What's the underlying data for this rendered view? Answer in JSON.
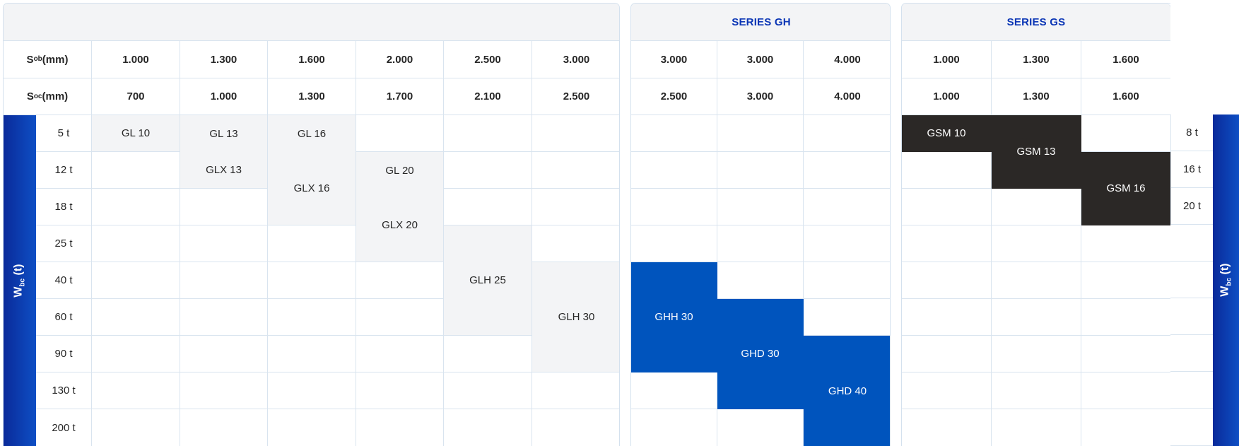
{
  "series": {
    "gh_title": "SERIES GH",
    "gs_title": "SERIES GS"
  },
  "labels": {
    "sob_main": "S",
    "sob_sub": "ob",
    "sob_unit": " (mm)",
    "soc_main": "S",
    "soc_sub": "oc",
    "soc_unit": " (mm)",
    "wbc_main": "W",
    "wbc_sub": "bc",
    "wbc_unit": " (t)"
  },
  "gl": {
    "sob": [
      "1.000",
      "1.300",
      "1.600",
      "2.000",
      "2.500",
      "3.000"
    ],
    "soc": [
      "700",
      "1.000",
      "1.300",
      "1.700",
      "2.100",
      "2.500"
    ],
    "weights": [
      "5 t",
      "12 t",
      "18 t",
      "25 t",
      "40 t",
      "60 t",
      "90 t",
      "130 t",
      "200 t"
    ],
    "models": {
      "gl10": "GL 10",
      "gl13": "GL 13",
      "gl16": "GL 16",
      "glx13": "GLX 13",
      "glx16": "GLX 16",
      "gl20": "GL 20",
      "glx20": "GLX 20",
      "glh25": "GLH 25",
      "glh30": "GLH 30"
    }
  },
  "gh": {
    "sob": [
      "3.000",
      "3.000",
      "4.000"
    ],
    "soc": [
      "2.500",
      "3.000",
      "4.000"
    ],
    "models": {
      "ghh30": "GHH 30",
      "ghd30": "GHD 30",
      "ghd40": "GHD 40"
    }
  },
  "gs": {
    "sob": [
      "1.000",
      "1.300",
      "1.600"
    ],
    "soc": [
      "1.000",
      "1.300",
      "1.600"
    ],
    "weights": [
      "8 t",
      "16 t",
      "20 t"
    ],
    "models": {
      "gsm10": "GSM 10",
      "gsm13": "GSM 13",
      "gsm16": "GSM 16"
    }
  },
  "colors": {
    "gh_blue": "#0054bd",
    "gs_dark": "#2b2826",
    "gl_grey": "#f3f4f6",
    "series_title": "#0a35b5"
  }
}
